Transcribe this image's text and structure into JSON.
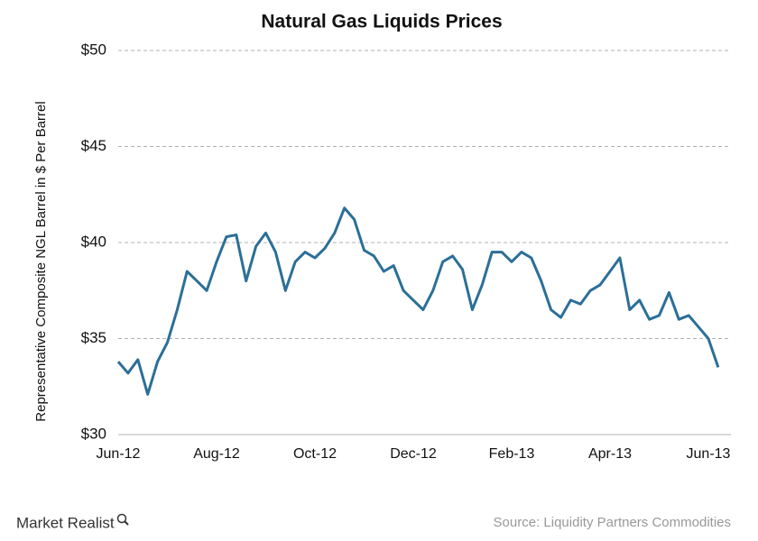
{
  "chart_data": {
    "type": "line",
    "title": "Natural Gas Liquids Prices",
    "y_label": "Representative Composite NGL Barrel in $ Per Barrel",
    "source": "Source: Liquidity Partners Commodities",
    "brand": "Market Realist",
    "categories": [
      "Jun-12",
      null,
      null,
      null,
      null,
      null,
      null,
      null,
      null,
      null,
      "Aug-12",
      null,
      null,
      null,
      null,
      null,
      null,
      null,
      null,
      null,
      "Oct-12",
      null,
      null,
      null,
      null,
      null,
      null,
      null,
      null,
      null,
      "Dec-12",
      null,
      null,
      null,
      null,
      null,
      null,
      null,
      null,
      null,
      "Feb-13",
      null,
      null,
      null,
      null,
      null,
      null,
      null,
      null,
      null,
      "Apr-13",
      null,
      null,
      null,
      null,
      null,
      null,
      null,
      null,
      null,
      "Jun-13",
      null
    ],
    "values": [
      33.8,
      33.2,
      33.9,
      32.1,
      33.8,
      34.8,
      36.5,
      38.5,
      38.0,
      37.5,
      39.0,
      40.3,
      40.4,
      38.0,
      39.8,
      40.5,
      39.5,
      37.5,
      39.0,
      39.5,
      39.2,
      39.7,
      40.5,
      41.8,
      41.2,
      39.6,
      39.3,
      38.5,
      38.8,
      37.5,
      37.0,
      36.5,
      37.5,
      39.0,
      39.3,
      38.6,
      36.5,
      37.8,
      39.5,
      39.5,
      39.0,
      39.5,
      39.2,
      38.0,
      36.5,
      36.1,
      37.0,
      36.8,
      37.5,
      37.8,
      38.5,
      39.2,
      36.5,
      37.0,
      36.0,
      36.2,
      37.4,
      36.0,
      36.2,
      35.6,
      35.0,
      33.5
    ],
    "color": "#2b6f98",
    "ylim": [
      30,
      50
    ],
    "yticks": [
      {
        "value": 30,
        "label": "$30"
      },
      {
        "value": 35,
        "label": "$35"
      },
      {
        "value": 40,
        "label": "$40"
      },
      {
        "value": 45,
        "label": "$45"
      },
      {
        "value": 50,
        "label": "$50"
      }
    ],
    "grid": true
  }
}
